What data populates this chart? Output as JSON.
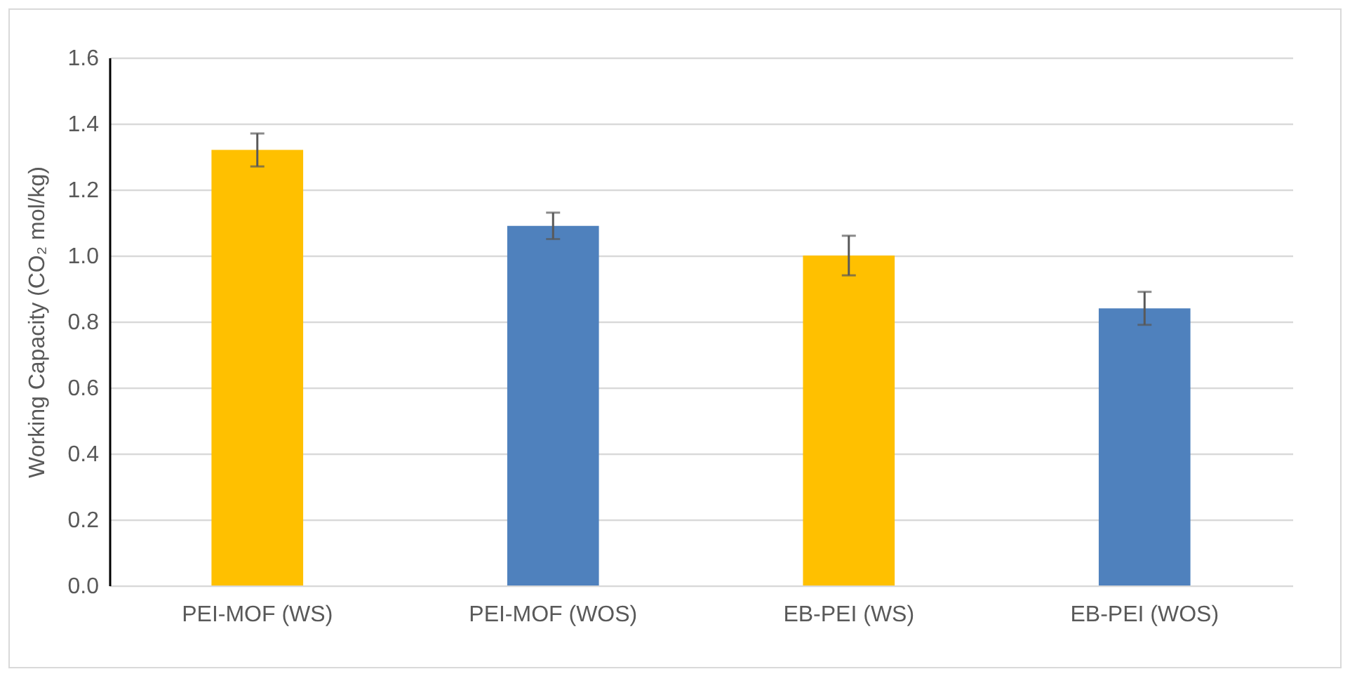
{
  "chart_data": {
    "type": "bar",
    "ylabel": "Working Capacity (CO₂ mol/kg)",
    "categories": [
      "PEI-MOF (WS)",
      "PEI-MOF (WOS)",
      "EB-PEI  (WS)",
      "EB-PEI  (WOS)"
    ],
    "values": [
      1.32,
      1.09,
      1.0,
      0.84
    ],
    "errors": [
      0.05,
      0.04,
      0.06,
      0.05
    ],
    "colors": [
      "#ffc000",
      "#4f81bd",
      "#ffc000",
      "#4f81bd"
    ],
    "ylim": [
      0,
      1.6
    ],
    "yticks": [
      {
        "value": 0,
        "label": "0.0"
      },
      0.2,
      0.4,
      0.6,
      0.8,
      {
        "value": 1,
        "label": "1.0"
      },
      1.2,
      1.4,
      1.6
    ],
    "grid": "y"
  }
}
